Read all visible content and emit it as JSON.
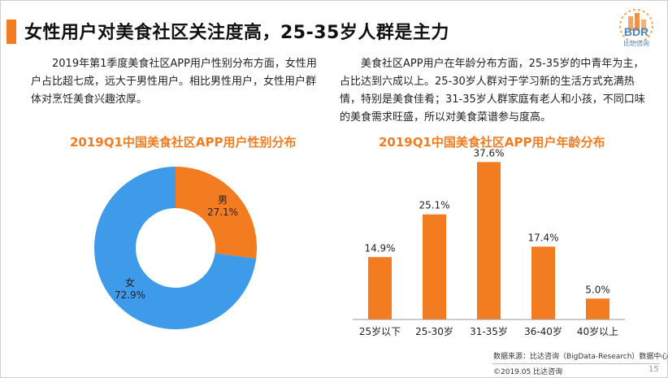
{
  "slide": {
    "title": "女性用户对美食社区关注度高，25-35岁人群是主力",
    "left_paragraph": "2019年第1季度美食社区APP用户性别分布方面，女性用户占比超七成，远大于男性用户。相比男性用户，女性用户群体对烹饪美食兴趣浓厚。",
    "right_paragraph": "美食社区APP用户在年龄分布方面，25-35岁的中青年为主，占比达到六成以上。25-30岁人群对于学习新的生活方式充满热情，特别是美食佳肴；31-35岁人群家庭有老人和小孩，不同口味的美食需求旺盛，所以对美食菜谱参与度高。",
    "source": "数据来源：比达咨询（BigData-Research）数据中心",
    "copyright": "©2019.05 比达咨询",
    "page_number": "15"
  },
  "logo": {
    "text": "BDR",
    "subtext": "比达咨询",
    "icon": "bdr-logo-icon"
  },
  "colors": {
    "accent": "#f47c20",
    "pie_blue": "#3d9be9",
    "bar": "#f47c20"
  },
  "chart_data": [
    {
      "type": "pie",
      "title": "2019Q1中国美食社区APP用户性别分布",
      "donut": true,
      "slices": [
        {
          "label": "男",
          "value": 27.1,
          "value_label": "27.1%",
          "color": "#f47c20"
        },
        {
          "label": "女",
          "value": 72.9,
          "value_label": "72.9%",
          "color": "#3d9be9"
        }
      ]
    },
    {
      "type": "bar",
      "title": "2019Q1中国美食社区APP用户年龄分布",
      "categories": [
        "25岁以下",
        "25-30岁",
        "31-35岁",
        "36-40岁",
        "40岁以上"
      ],
      "values": [
        14.9,
        25.1,
        37.6,
        17.4,
        5.0
      ],
      "value_labels": [
        "14.9%",
        "25.1%",
        "37.6%",
        "17.4%",
        "5.0%"
      ],
      "ylim": [
        0,
        40
      ],
      "grid": false,
      "color": "#f47c20"
    }
  ]
}
